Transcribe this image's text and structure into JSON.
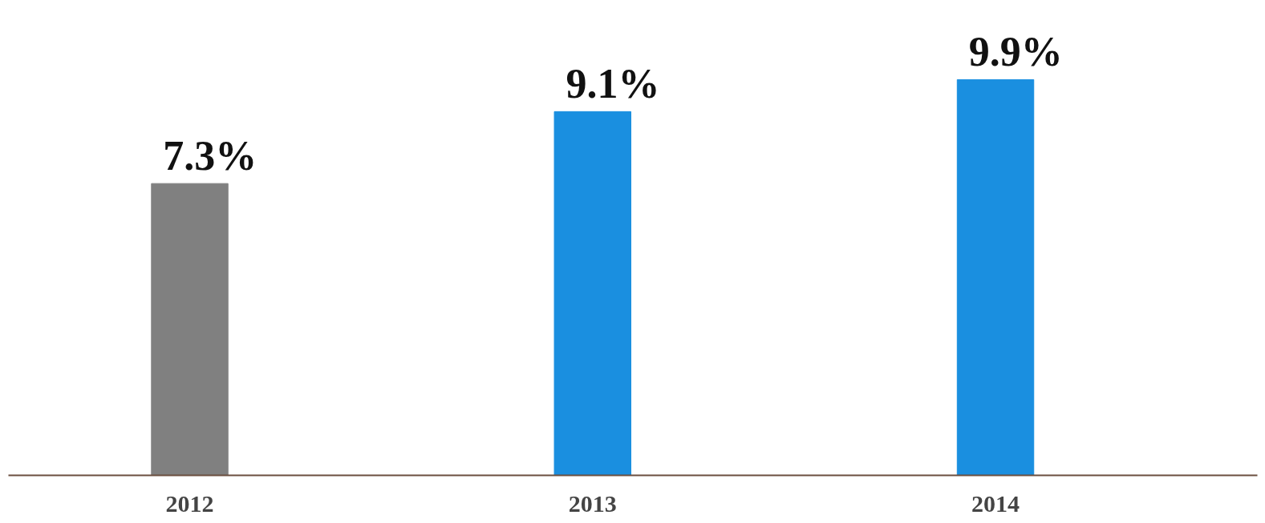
{
  "chart_data": {
    "type": "bar",
    "categories": [
      "2012",
      "2013",
      "2014"
    ],
    "values": [
      7.3,
      9.1,
      9.9
    ],
    "colors": [
      "#808080",
      "#1a8fe0",
      "#1a8fe0"
    ],
    "value_labels": [
      "7.3%",
      "9.1%",
      "9.9%"
    ],
    "grid": false
  }
}
